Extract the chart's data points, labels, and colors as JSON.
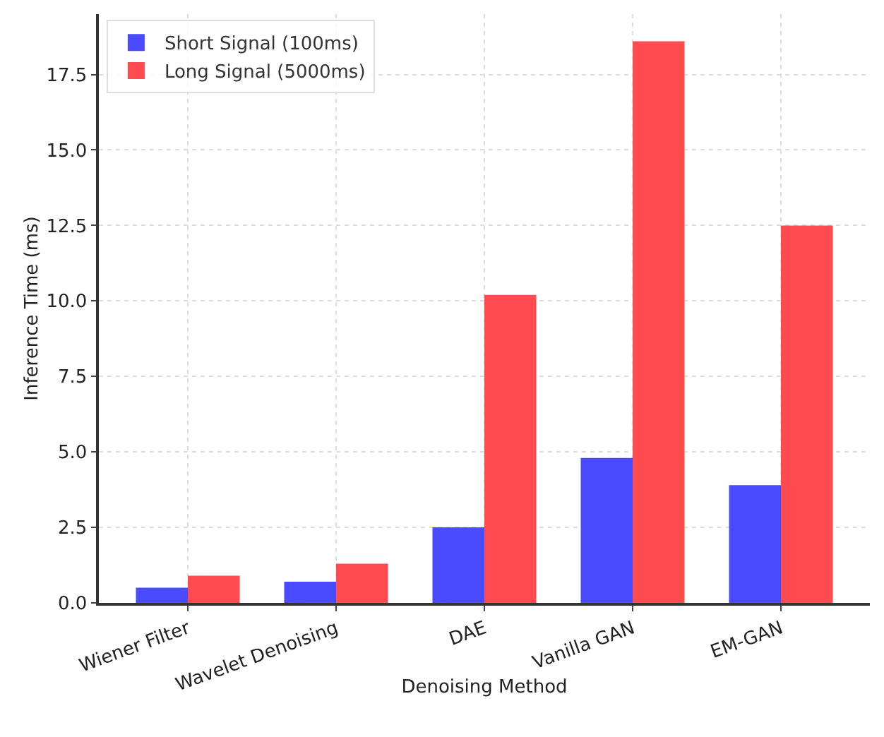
{
  "chart_data": {
    "type": "bar",
    "xlabel": "Denoising Method",
    "ylabel": "Inference Time (ms)",
    "categories": [
      "Wiener Filter",
      "Wavelet Denoising",
      "DAE",
      "Vanilla GAN",
      "EM-GAN"
    ],
    "series": [
      {
        "name": "Short Signal (100ms)",
        "color": "#4a4aff",
        "values": [
          0.5,
          0.7,
          2.5,
          4.8,
          3.9
        ]
      },
      {
        "name": "Long Signal (5000ms)",
        "color": "#ff4a4f",
        "values": [
          0.9,
          1.3,
          10.2,
          18.6,
          12.5
        ]
      }
    ],
    "ylim": [
      0,
      19.5
    ],
    "yticks": [
      {
        "value": 0,
        "label": "0.0"
      },
      {
        "value": 2.5,
        "label": "2.5"
      },
      {
        "value": 5,
        "label": "5.0"
      },
      {
        "value": 7.5,
        "label": "7.5"
      },
      {
        "value": 10,
        "label": "10.0"
      },
      {
        "value": 12.5,
        "label": "12.5"
      },
      {
        "value": 15,
        "label": "15.0"
      },
      {
        "value": 17.5,
        "label": "17.5"
      }
    ],
    "grid": true,
    "legend": "top left"
  }
}
